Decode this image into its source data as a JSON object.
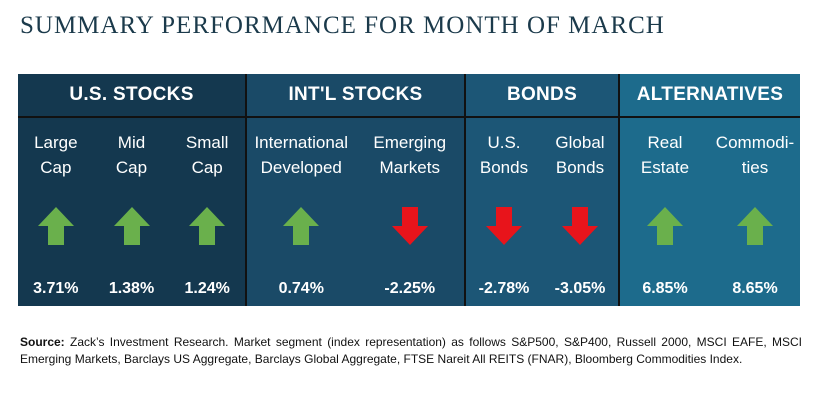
{
  "title": "SUMMARY PERFORMANCE FOR MONTH OF MARCH",
  "groups": [
    {
      "name": "U.S. STOCKS",
      "items": [
        {
          "line1": "Large",
          "line2": "Cap",
          "value": "3.71%",
          "dir": "up"
        },
        {
          "line1": "Mid",
          "line2": "Cap",
          "value": "1.38%",
          "dir": "up"
        },
        {
          "line1": "Small",
          "line2": "Cap",
          "value": "1.24%",
          "dir": "up"
        }
      ]
    },
    {
      "name": "INT'L STOCKS",
      "items": [
        {
          "line1": "International",
          "line2": "Developed",
          "value": "0.74%",
          "dir": "up"
        },
        {
          "line1": "Emerging",
          "line2": "Markets",
          "value": "-2.25%",
          "dir": "down"
        }
      ]
    },
    {
      "name": "BONDS",
      "items": [
        {
          "line1": "U.S.",
          "line2": "Bonds",
          "value": "-2.78%",
          "dir": "down"
        },
        {
          "line1": "Global",
          "line2": "Bonds",
          "value": "-3.05%",
          "dir": "down"
        }
      ]
    },
    {
      "name": "ALTERNATIVES",
      "items": [
        {
          "line1": "Real",
          "line2": "Estate",
          "value": "6.85%",
          "dir": "up"
        },
        {
          "line1": "Commodi-",
          "line2": "ties",
          "value": "8.65%",
          "dir": "up"
        }
      ]
    }
  ],
  "colors": {
    "up": "#6ab04c",
    "down": "#e8141b"
  },
  "source_label": "Source:",
  "source_text": " Zack’s Investment Research. Market segment (index representation) as follows S&P500, S&P400, Russell 2000, MSCI EAFE, MSCI Emerging Markets, Barclays US Aggregate, Barclays Global Aggregate, FTSE Nareit All REITS (FNAR), Bloomberg Commodities Index."
}
